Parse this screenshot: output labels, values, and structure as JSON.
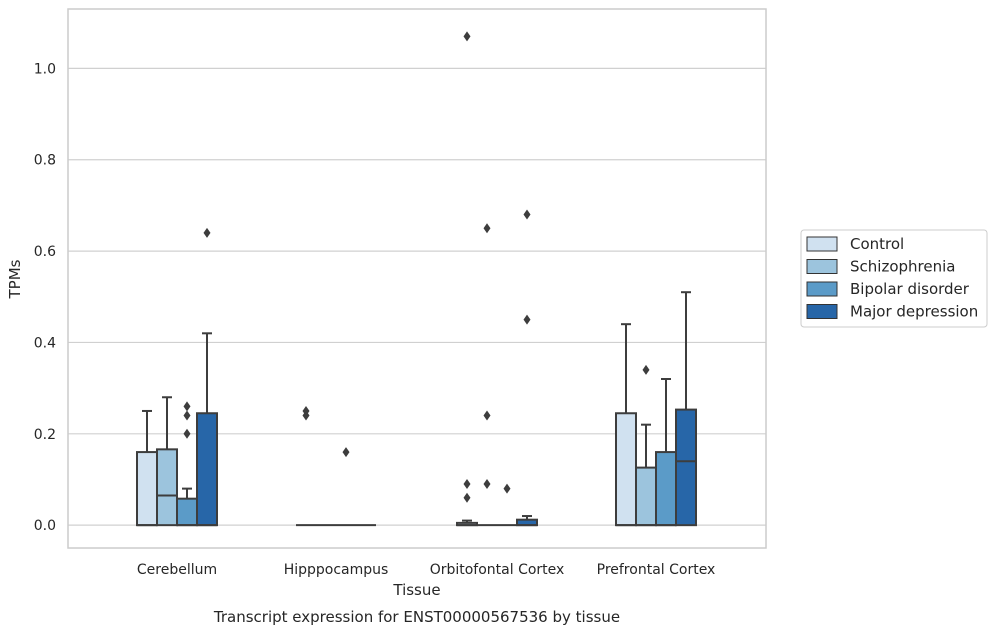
{
  "caption": "Transcript expression for ENST00000567536 by tissue",
  "chart_data": {
    "type": "box",
    "xlabel": "Tissue",
    "ylabel": "TPMs",
    "ylim": [
      -0.05,
      1.13
    ],
    "yticks": [
      0.0,
      0.2,
      0.4,
      0.6,
      0.8,
      1.0
    ],
    "ytick_labels": [
      "0.0",
      "0.2",
      "0.4",
      "0.6",
      "0.8",
      "1.0"
    ],
    "categories": [
      "Cerebellum",
      "Hipppocampus",
      "Orbitofontal Cortex",
      "Prefrontal Cortex"
    ],
    "grid": "horizontal",
    "legend_position": "right",
    "series": [
      {
        "name": "Control",
        "color": "#d0e1f0",
        "boxes": [
          {
            "q1": 0.0,
            "median": 0.0,
            "q3": 0.16,
            "whisker_low": 0.0,
            "whisker_high": 0.25,
            "outliers": []
          },
          {
            "q1": 0.0,
            "median": 0.0,
            "q3": 0.0,
            "whisker_low": 0.0,
            "whisker_high": 0.0,
            "outliers": [
              0.24,
              0.25
            ]
          },
          {
            "q1": 0.0,
            "median": 0.0,
            "q3": 0.005,
            "whisker_low": 0.0,
            "whisker_high": 0.01,
            "outliers": [
              0.06,
              0.09,
              1.07
            ]
          },
          {
            "q1": 0.0,
            "median": 0.0,
            "q3": 0.245,
            "whisker_low": 0.0,
            "whisker_high": 0.44,
            "outliers": []
          }
        ]
      },
      {
        "name": "Schizophrenia",
        "color": "#9cc4dd",
        "boxes": [
          {
            "q1": 0.0,
            "median": 0.065,
            "q3": 0.166,
            "whisker_low": 0.0,
            "whisker_high": 0.28,
            "outliers": []
          },
          {
            "q1": 0.0,
            "median": 0.0,
            "q3": 0.0,
            "whisker_low": 0.0,
            "whisker_high": 0.0,
            "outliers": []
          },
          {
            "q1": 0.0,
            "median": 0.0,
            "q3": 0.0,
            "whisker_low": 0.0,
            "whisker_high": 0.0,
            "outliers": [
              0.09,
              0.24,
              0.65
            ]
          },
          {
            "q1": 0.0,
            "median": 0.0,
            "q3": 0.126,
            "whisker_low": 0.0,
            "whisker_high": 0.22,
            "outliers": [
              0.34
            ]
          }
        ]
      },
      {
        "name": "Bipolar disorder",
        "color": "#5b9bc8",
        "boxes": [
          {
            "q1": 0.0,
            "median": 0.0,
            "q3": 0.058,
            "whisker_low": 0.0,
            "whisker_high": 0.08,
            "outliers": [
              0.2,
              0.24,
              0.26
            ]
          },
          {
            "q1": 0.0,
            "median": 0.0,
            "q3": 0.0,
            "whisker_low": 0.0,
            "whisker_high": 0.0,
            "outliers": [
              0.16
            ]
          },
          {
            "q1": 0.0,
            "median": 0.0,
            "q3": 0.0,
            "whisker_low": 0.0,
            "whisker_high": 0.0,
            "outliers": [
              0.08
            ]
          },
          {
            "q1": 0.0,
            "median": 0.0,
            "q3": 0.16,
            "whisker_low": 0.0,
            "whisker_high": 0.32,
            "outliers": []
          }
        ]
      },
      {
        "name": "Major depression",
        "color": "#2766a8",
        "boxes": [
          {
            "q1": 0.0,
            "median": 0.0,
            "q3": 0.245,
            "whisker_low": 0.0,
            "whisker_high": 0.42,
            "outliers": [
              0.64
            ]
          },
          {
            "q1": 0.0,
            "median": 0.0,
            "q3": 0.0,
            "whisker_low": 0.0,
            "whisker_high": 0.0,
            "outliers": []
          },
          {
            "q1": 0.0,
            "median": 0.0,
            "q3": 0.012,
            "whisker_low": 0.0,
            "whisker_high": 0.02,
            "outliers": [
              0.45,
              0.68
            ]
          },
          {
            "q1": 0.0,
            "median": 0.14,
            "q3": 0.253,
            "whisker_low": 0.0,
            "whisker_high": 0.51,
            "outliers": []
          }
        ]
      }
    ]
  }
}
